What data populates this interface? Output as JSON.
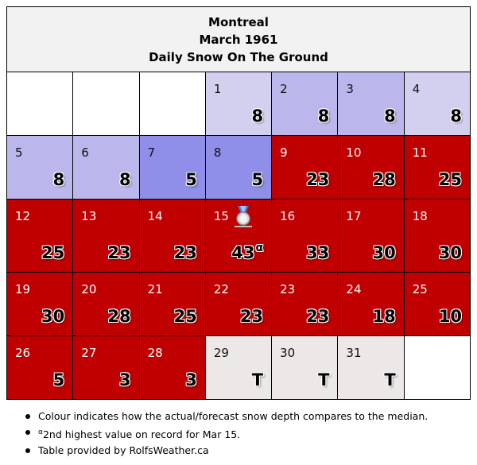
{
  "header": {
    "city": "Montreal",
    "period": "March 1961",
    "subtitle": "Daily Snow On The Ground"
  },
  "colors": {
    "above_median_red": "#c00000",
    "below_median_light": "#d3d0ef",
    "below_median_mid": "#bbb7ec",
    "below_median_strong": "#8f8ee8",
    "trace_gray": "#ede8e8"
  },
  "icons": {
    "record": "silver-medal-icon"
  },
  "days": [
    {
      "day": "1",
      "value": "8"
    },
    {
      "day": "2",
      "value": "8"
    },
    {
      "day": "3",
      "value": "8"
    },
    {
      "day": "4",
      "value": "8"
    },
    {
      "day": "5",
      "value": "8"
    },
    {
      "day": "6",
      "value": "8"
    },
    {
      "day": "7",
      "value": "5"
    },
    {
      "day": "8",
      "value": "5"
    },
    {
      "day": "9",
      "value": "23"
    },
    {
      "day": "10",
      "value": "28"
    },
    {
      "day": "11",
      "value": "25"
    },
    {
      "day": "12",
      "value": "25"
    },
    {
      "day": "13",
      "value": "23"
    },
    {
      "day": "14",
      "value": "23"
    },
    {
      "day": "15",
      "value": "43",
      "marker": "α"
    },
    {
      "day": "16",
      "value": "33"
    },
    {
      "day": "17",
      "value": "30"
    },
    {
      "day": "18",
      "value": "30"
    },
    {
      "day": "19",
      "value": "30"
    },
    {
      "day": "20",
      "value": "28"
    },
    {
      "day": "21",
      "value": "25"
    },
    {
      "day": "22",
      "value": "23"
    },
    {
      "day": "23",
      "value": "23"
    },
    {
      "day": "24",
      "value": "18"
    },
    {
      "day": "25",
      "value": "10"
    },
    {
      "day": "26",
      "value": "5"
    },
    {
      "day": "27",
      "value": "3"
    },
    {
      "day": "28",
      "value": "3"
    },
    {
      "day": "29",
      "value": "T"
    },
    {
      "day": "30",
      "value": "T"
    },
    {
      "day": "31",
      "value": "T"
    }
  ],
  "notes": {
    "colour": "Colour indicates how the actual/forecast snow depth compares to the median.",
    "record_marker": "α",
    "record_text": "2nd highest value on record for Mar 15.",
    "credit": "Table provided by RolfsWeather.ca"
  }
}
